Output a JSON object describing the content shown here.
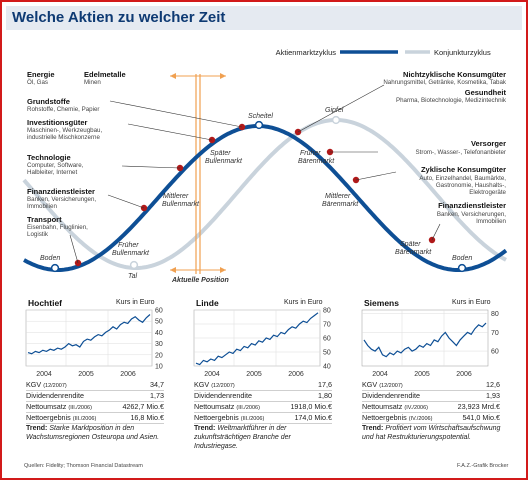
{
  "title": "Welche Aktien zu welcher Zeit",
  "legend": {
    "series1": "Aktienmarktzyklus",
    "series2": "Konjunkturzyklus",
    "color1": "#0e4f95",
    "color2": "#c9d3dc"
  },
  "cycle": {
    "left_groups": [
      {
        "head": "Energie",
        "sub": "Öl, Gas"
      },
      {
        "head": "Edelmetalle",
        "sub": "Minen"
      },
      {
        "head": "Grundstoffe",
        "sub": "Rohstoffe, Chemie, Papier"
      },
      {
        "head": "Investitionsgüter",
        "sub1": "Maschinen-, Werkzeugbau,",
        "sub2": "industrielle Mischkonzerne"
      },
      {
        "head": "Technologie",
        "sub1": "Computer, Software,",
        "sub2": "Halbleiter, Internet"
      },
      {
        "head": "Finanzdienstleister",
        "sub1": "Banken, Versicherungen,",
        "sub2": "Immobilien"
      },
      {
        "head": "Transport",
        "sub1": "Eisenbahn, Fluglinien,",
        "sub2": "Logistik"
      }
    ],
    "right_groups": [
      {
        "head": "Nichtzyklische Konsumgüter",
        "sub": "Nahrungsmittel, Getränke, Kosmetika, Tabak"
      },
      {
        "head": "Gesundheit",
        "sub": "Pharma, Biotechnologie, Medizintechnik"
      },
      {
        "head": "Versorger",
        "sub": "Strom-, Wasser-, Telefonanbieter"
      },
      {
        "head": "Zyklische Konsumgüter",
        "sub1": "Auto, Einzelhandel, Baumärkte,",
        "sub2": "Gastronomie, Haushalts-,",
        "sub3": "Elektrogeräte"
      },
      {
        "head": "Finanzdienstleister",
        "sub1": "Banken, Versicherungen,",
        "sub2": "Immobilien"
      }
    ],
    "phases": {
      "boden": "Boden",
      "tal": "Tal",
      "frueher_bullenmarkt_1": "Früher",
      "frueher_bullenmarkt_2": "Bullenmarkt",
      "mittlerer_bullenmarkt_1": "Mittlerer",
      "mittlerer_bullenmarkt_2": "Bullenmarkt",
      "spaeter_bullenmarkt_1": "Später",
      "spaeter_bullenmarkt_2": "Bullenmarkt",
      "scheitel": "Scheitel",
      "gipfel": "Gipfel",
      "frueher_baerenmarkt_1": "Früher",
      "frueher_baerenmarkt_2": "Bärenmarkt",
      "mittlerer_baerenmarkt_1": "Mittlerer",
      "mittlerer_baerenmarkt_2": "Bärenmarkt",
      "spaeter_baerenmarkt_1": "Später",
      "spaeter_baerenmarkt_2": "Bärenmarkt",
      "boden_right": "Boden"
    },
    "current_position": "Aktuelle Position",
    "accent_color": "#f0a050",
    "marker_color": "#b01919"
  },
  "stocks": [
    {
      "name": "Hochtief",
      "unit": "Kurs in Euro",
      "years": [
        "2004",
        "2005",
        "2006"
      ],
      "ticks": [
        "60",
        "50",
        "40",
        "30",
        "20",
        "10"
      ],
      "ylim": [
        10,
        60
      ],
      "series": [
        22,
        21,
        23,
        22,
        24,
        23,
        25,
        24,
        26,
        25,
        27,
        30,
        28,
        29,
        27,
        32,
        34,
        33,
        36,
        38,
        37,
        40,
        42,
        45,
        43,
        47,
        49,
        48,
        52,
        54,
        51,
        49,
        53,
        56
      ],
      "kpi": [
        {
          "label": "KGV",
          "note": "(12/2007)",
          "value": "34,7"
        },
        {
          "label": "Dividendenrendite",
          "note": "",
          "value": "1,73"
        },
        {
          "label": "Nettoumsatz",
          "note": "(III./2006)",
          "value": "4262,7 Mio.€"
        },
        {
          "label": "Nettoergebnis",
          "note": "(III./2006)",
          "value": "16,8 Mio.€"
        }
      ],
      "trend_label": "Trend:",
      "trend": "Starke Marktposition in den Wachstumsregionen Osteuropa und Asien."
    },
    {
      "name": "Linde",
      "unit": "Kurs in Euro",
      "years": [
        "2004",
        "2005",
        "2006"
      ],
      "ticks": [
        "80",
        "70",
        "60",
        "50",
        "40"
      ],
      "ylim": [
        40,
        80
      ],
      "series": [
        42,
        41,
        44,
        43,
        45,
        44,
        47,
        46,
        48,
        50,
        49,
        52,
        51,
        54,
        53,
        56,
        55,
        58,
        57,
        60,
        59,
        62,
        61,
        64,
        63,
        66,
        68,
        67,
        70,
        72,
        71,
        74,
        76,
        78
      ],
      "kpi": [
        {
          "label": "KGV",
          "note": "(12/2007)",
          "value": "17,6"
        },
        {
          "label": "Dividendenrendite",
          "note": "",
          "value": "1,80"
        },
        {
          "label": "Nettoumsatz",
          "note": "(III./2006)",
          "value": "1918,0 Mio.€"
        },
        {
          "label": "Nettoergebnis",
          "note": "(III./2006)",
          "value": "174,0 Mio.€"
        }
      ],
      "trend_label": "Trend:",
      "trend": "Weltmarktführer in der zukunftsträchtigen Branche der Industriegase."
    },
    {
      "name": "Siemens",
      "unit": "Kurs in Euro",
      "years": [
        "2004",
        "2005",
        "2006"
      ],
      "ticks": [
        "80",
        "70",
        "60"
      ],
      "ylim": [
        52,
        82
      ],
      "series": [
        66,
        63,
        61,
        60,
        62,
        58,
        57,
        59,
        58,
        60,
        59,
        61,
        62,
        60,
        61,
        63,
        62,
        64,
        63,
        66,
        65,
        68,
        70,
        67,
        65,
        63,
        66,
        68,
        70,
        69,
        72,
        74,
        73,
        75
      ],
      "kpi": [
        {
          "label": "KGV",
          "note": "(12/2007)",
          "value": "12,6"
        },
        {
          "label": "Dividendenrendite",
          "note": "",
          "value": "1,93"
        },
        {
          "label": "Nettoumsatz",
          "note": "(IV./2006)",
          "value": "23,923 Mrd.€"
        },
        {
          "label": "Nettoergebnis",
          "note": "(IV./2006)",
          "value": "541,0 Mio.€"
        }
      ],
      "trend_label": "Trend:",
      "trend": "Profitiert vom Wirtschaftsaufschwung und hat Restrukturierungspotential."
    }
  ],
  "footer": {
    "source": "Quellen: Fidelity; Thomson Financial Datastream",
    "credit": "F.A.Z.-Grafik Brocker"
  }
}
